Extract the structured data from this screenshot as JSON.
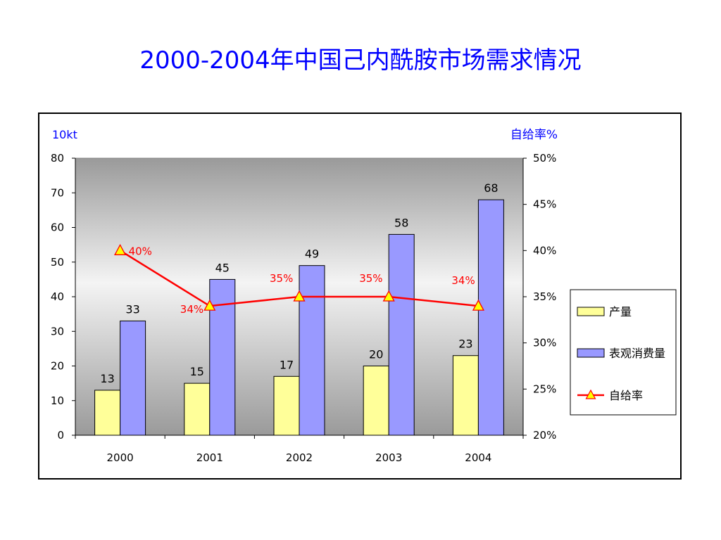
{
  "title": "2000-2004年中国己内酰胺市场需求情况",
  "chart_data": {
    "type": "bar",
    "categories": [
      "2000",
      "2001",
      "2002",
      "2003",
      "2004"
    ],
    "series": [
      {
        "name": "产量",
        "kind": "bar",
        "axis": "left",
        "color": "#ffff99",
        "values": [
          13,
          15,
          17,
          20,
          23
        ]
      },
      {
        "name": "表观消费量",
        "kind": "bar",
        "axis": "left",
        "color": "#9999ff",
        "values": [
          33,
          45,
          49,
          58,
          68
        ]
      },
      {
        "name": "自给率",
        "kind": "line",
        "axis": "right",
        "color": "#ff0000",
        "marker": "triangle",
        "marker_color": "#ffff00",
        "values": [
          40,
          34,
          35,
          35,
          34
        ],
        "labels": [
          "40%",
          "34%",
          "35%",
          "35%",
          "34%"
        ]
      }
    ],
    "y_left": {
      "label": "10kt",
      "ylim": [
        0,
        80
      ],
      "ticks": [
        0,
        10,
        20,
        30,
        40,
        50,
        60,
        70,
        80
      ]
    },
    "y_right": {
      "label": "自给率%",
      "ylim": [
        20,
        50
      ],
      "ticks": [
        "20%",
        "25%",
        "30%",
        "35%",
        "40%",
        "45%",
        "50%"
      ]
    },
    "legend_position": "right",
    "plot_background": "gradient-gray",
    "grid": false
  }
}
